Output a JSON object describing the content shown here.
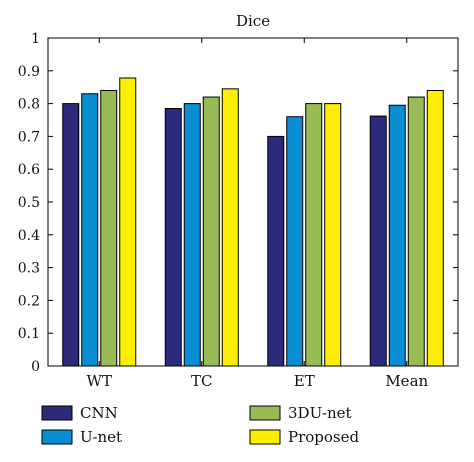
{
  "chart_data": {
    "type": "bar",
    "title": "Dice",
    "xlabel": "",
    "ylabel": "",
    "ylim": [
      0,
      1
    ],
    "yticks": [
      "0",
      "0.1",
      "0.2",
      "0.3",
      "0.4",
      "0.5",
      "0.6",
      "0.7",
      "0.8",
      "0.9",
      "1"
    ],
    "categories": [
      "WT",
      "TC",
      "ET",
      "Mean"
    ],
    "series": [
      {
        "name": "CNN",
        "color": "#2b2a7b",
        "values": [
          0.8,
          0.785,
          0.7,
          0.762
        ]
      },
      {
        "name": "U-net",
        "color": "#0a8ed3",
        "values": [
          0.83,
          0.8,
          0.76,
          0.795
        ]
      },
      {
        "name": "3DU-net",
        "color": "#99bb55",
        "values": [
          0.84,
          0.82,
          0.8,
          0.82
        ]
      },
      {
        "name": "Proposed",
        "color": "#ffee00",
        "values": [
          0.878,
          0.845,
          0.8,
          0.84
        ]
      }
    ],
    "grid": false,
    "legend": "bottom"
  }
}
